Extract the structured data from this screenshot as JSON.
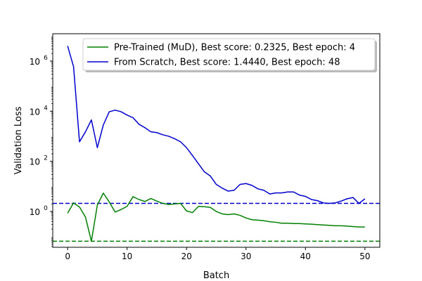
{
  "chart_data": {
    "type": "line",
    "xlabel": "Batch",
    "ylabel": "Validation Loss",
    "xlim": [
      -2.5,
      52.5
    ],
    "ylim": [
      0.0373,
      12300000
    ],
    "yscale": "log",
    "grid": false,
    "legend_position": "top-right",
    "x_ticks": [
      0,
      10,
      20,
      30,
      40,
      50
    ],
    "x_tick_labels": [
      "0",
      "10",
      "20",
      "30",
      "40",
      "50"
    ],
    "y_ticks": [
      1,
      100,
      10000,
      1000000
    ],
    "y_tick_base_labels": [
      "10",
      "10",
      "10",
      "10"
    ],
    "y_tick_exponent_labels": [
      "0",
      "2",
      "4",
      "6"
    ],
    "series": [
      {
        "name": "Pre-Trained (MuD), Best score: 0.2325, Best epoch: 4",
        "color": "#008000",
        "x": [
          0,
          1,
          2,
          3,
          4,
          5,
          6,
          7,
          8,
          9,
          10,
          11,
          12,
          13,
          14,
          15,
          16,
          17,
          18,
          19,
          20,
          21,
          22,
          23,
          24,
          25,
          26,
          27,
          28,
          29,
          30,
          31,
          32,
          33,
          34,
          35,
          36,
          37,
          38,
          39,
          40,
          41,
          42,
          43,
          44,
          45,
          46,
          47,
          48,
          49,
          50
        ],
        "y": [
          0.85,
          2.2,
          1.5,
          0.6,
          0.065,
          1.8,
          5.4,
          2.4,
          0.95,
          1.2,
          1.6,
          3.9,
          3.0,
          2.5,
          3.3,
          2.6,
          2.1,
          1.9,
          2.0,
          2.1,
          1.05,
          0.9,
          1.6,
          1.55,
          1.45,
          1.0,
          0.8,
          0.75,
          0.8,
          0.7,
          0.55,
          0.47,
          0.45,
          0.43,
          0.39,
          0.37,
          0.34,
          0.34,
          0.33,
          0.33,
          0.32,
          0.31,
          0.3,
          0.29,
          0.28,
          0.27,
          0.27,
          0.26,
          0.25,
          0.24,
          0.24
        ]
      },
      {
        "name": "From Scratch, Best score: 1.4440, Best epoch: 48",
        "color": "#0000cc",
        "x": [
          0,
          1,
          2,
          3,
          4,
          5,
          6,
          7,
          8,
          9,
          10,
          11,
          12,
          13,
          14,
          15,
          16,
          17,
          18,
          19,
          20,
          21,
          22,
          23,
          24,
          25,
          26,
          27,
          28,
          29,
          30,
          31,
          32,
          33,
          34,
          35,
          36,
          37,
          38,
          39,
          40,
          41,
          42,
          43,
          44,
          45,
          46,
          47,
          48,
          49,
          50
        ],
        "y": [
          4000000,
          600000,
          600,
          1500,
          4500,
          350,
          2800,
          9500,
          11000,
          9500,
          7000,
          5500,
          3000,
          2200,
          1500,
          1400,
          1150,
          1000,
          800,
          600,
          350,
          170,
          80,
          38,
          26,
          12,
          8.5,
          6.5,
          7,
          12,
          13,
          11,
          8,
          7,
          5,
          5.5,
          5.5,
          6,
          6,
          4.5,
          4,
          3,
          2.7,
          2.2,
          2.1,
          2.2,
          2.6,
          3.2,
          3.6,
          2.1,
          3.2
        ]
      }
    ],
    "reference_lines": [
      {
        "axis": "y",
        "value": 2.1,
        "color": "#0000cc",
        "style": "dashed"
      },
      {
        "axis": "y",
        "value": 0.065,
        "color": "#008000",
        "style": "dashed"
      }
    ]
  }
}
